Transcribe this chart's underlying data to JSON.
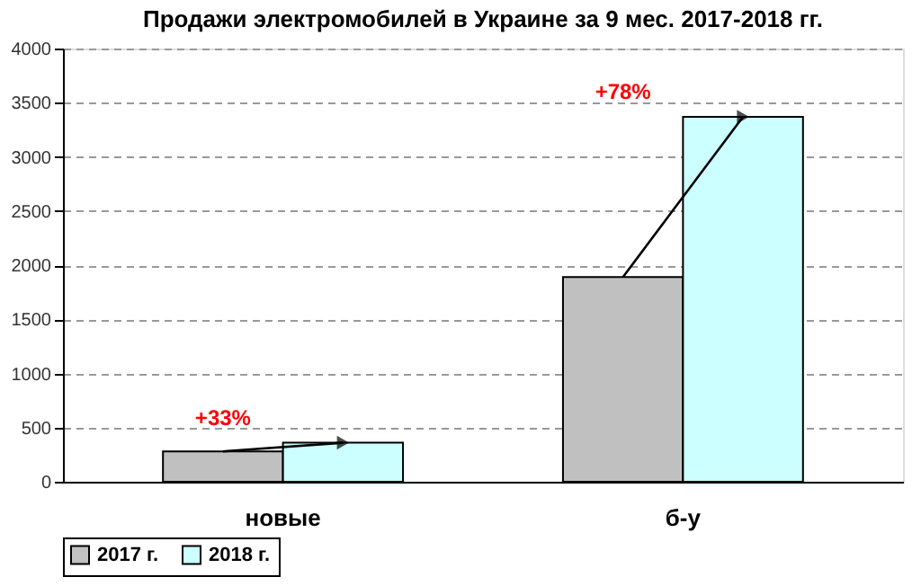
{
  "chart_data": {
    "type": "bar",
    "title": "Продажи электромобилей в Украине за 9 мес. 2017-2018 гг.",
    "categories": [
      "новые",
      "б-у"
    ],
    "series": [
      {
        "name": "2017 г.",
        "color": "#c0c0c0",
        "values": [
          280,
          1890
        ]
      },
      {
        "name": "2018 г.",
        "color": "#ccffff",
        "values": [
          360,
          3370
        ]
      }
    ],
    "ylim": [
      0,
      4000
    ],
    "yticks": [
      0,
      500,
      1000,
      1500,
      2000,
      2500,
      3000,
      3500,
      4000
    ],
    "grid": "y",
    "legend": "bottom",
    "annotations": [
      {
        "text": "+33%",
        "x": "новые",
        "y": 360
      },
      {
        "text": "+78%",
        "x": "б-у",
        "y": 3370
      }
    ]
  }
}
